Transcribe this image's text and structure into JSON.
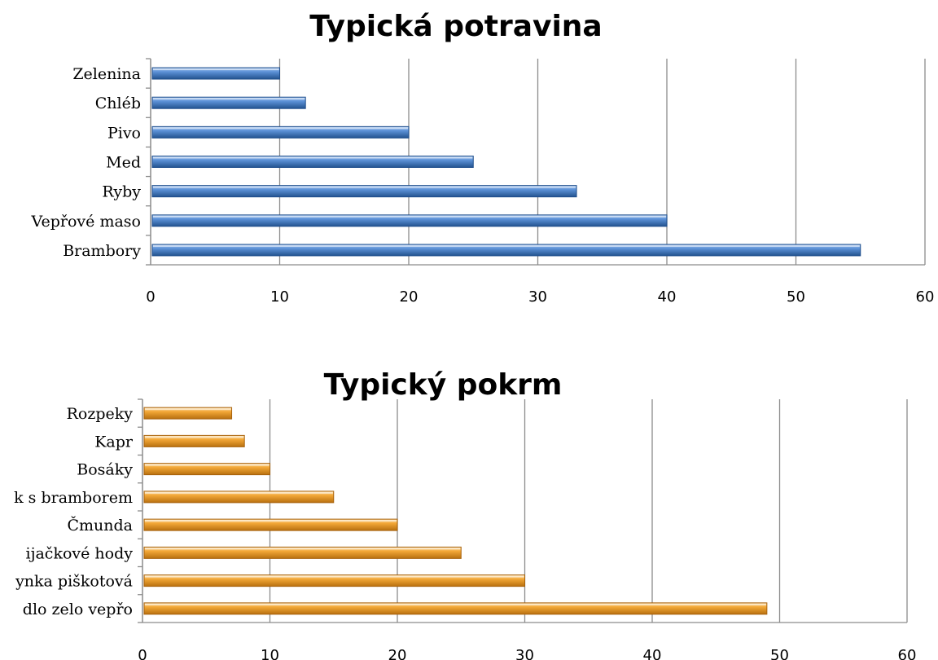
{
  "colors": {
    "blue_light": "#8fb4e8",
    "blue_mid": "#4a7fcb",
    "blue_dark": "#1f4e8c",
    "orange_light": "#fbd9a0",
    "orange_mid": "#f0a030",
    "orange_dark": "#b06a10"
  },
  "chart_data": [
    {
      "type": "bar",
      "orientation": "horizontal",
      "title": "Typická potravina",
      "categories": [
        "Brambory",
        "Vepřové maso",
        "Ryby",
        "Med",
        "Pivo",
        "Chléb",
        "Zelenina"
      ],
      "values": [
        55,
        40,
        33,
        25,
        20,
        12,
        10
      ],
      "xlim": [
        0,
        60
      ],
      "xticks": [
        0,
        10,
        20,
        30,
        40,
        50,
        60
      ],
      "grid": true,
      "color": "blue"
    },
    {
      "type": "bar",
      "orientation": "horizontal",
      "title": "Typický pokrm",
      "categories": [
        "Knedlo zelo vepřo",
        "Buchty a bábovka / Buchtička a bábovynka piškotová",
        "Zabijačkové hody",
        "Čmunda",
        "Knedlík s bramborem",
        "Bosáky",
        "Kapr",
        "Rozpeky"
      ],
      "category_labels_visible": [
        "dlo zelo vepřo",
        "ynka piškotová",
        "ijačkové hody",
        "Čmunda",
        "k s bramborem",
        "Bosáky",
        "Kapr",
        "Rozpeky"
      ],
      "values": [
        49,
        30,
        25,
        20,
        15,
        10,
        8,
        7
      ],
      "xlim": [
        0,
        60
      ],
      "xticks": [
        0,
        10,
        20,
        30,
        40,
        50,
        60
      ],
      "grid": true,
      "color": "orange"
    }
  ]
}
